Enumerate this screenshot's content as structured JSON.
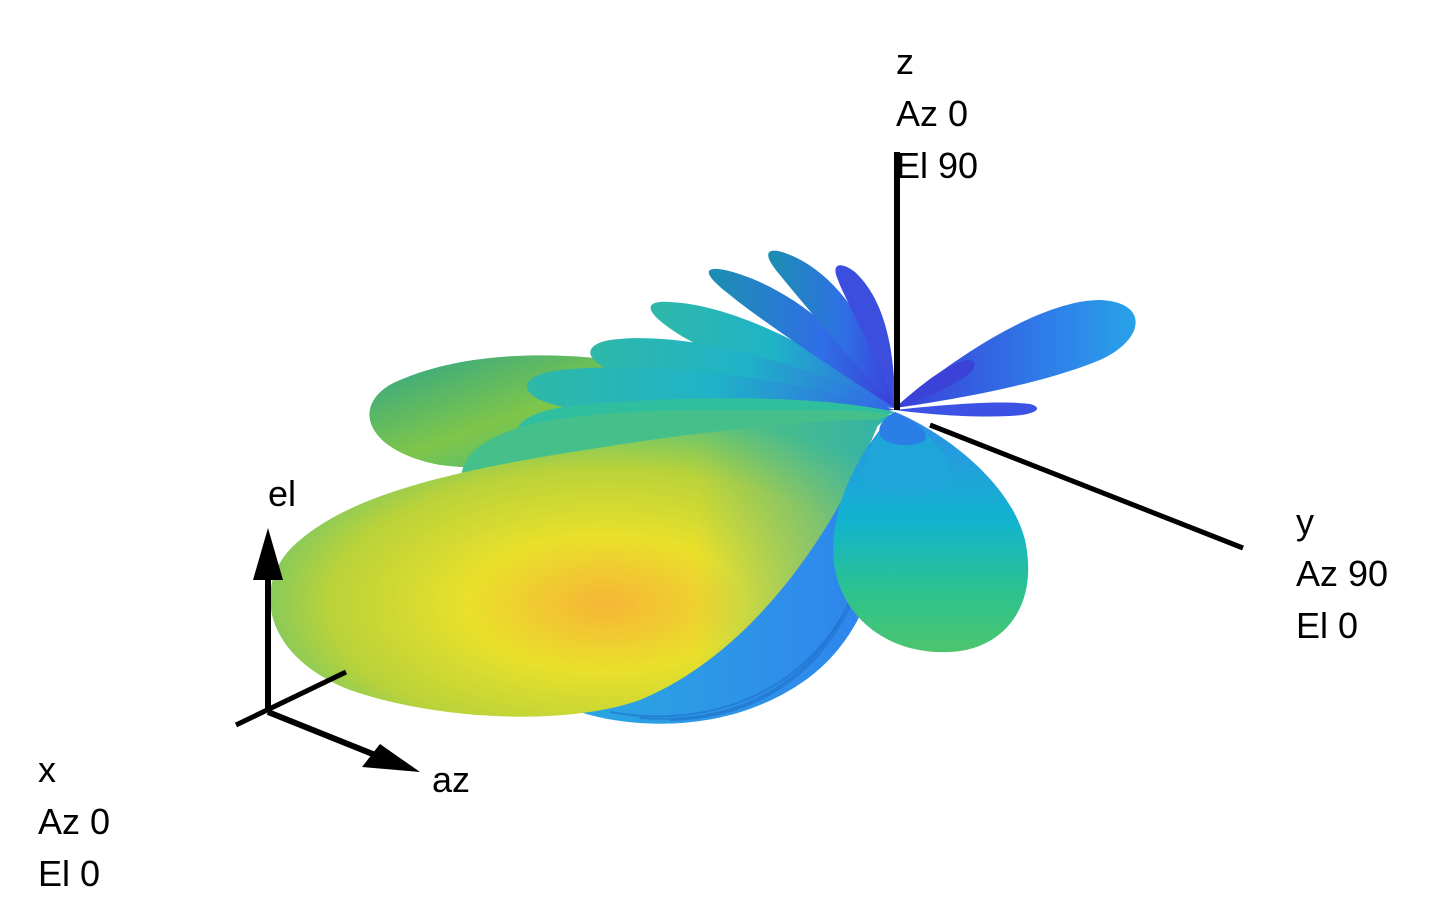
{
  "axes": {
    "x": {
      "name": "x",
      "az": "Az 0",
      "el": "El 0"
    },
    "y": {
      "name": "y",
      "az": "Az 90",
      "el": "El 0"
    },
    "z": {
      "name": "z",
      "az": "Az 0",
      "el": "El 90"
    }
  },
  "local_axes": {
    "elevation": "el",
    "azimuth": "az"
  },
  "colors": {
    "axis": "#000000",
    "colormap": [
      "#3b2fd6",
      "#2f77f5",
      "#12b0d8",
      "#2cc39b",
      "#9cc93a",
      "#e5e226",
      "#f7a832"
    ]
  }
}
